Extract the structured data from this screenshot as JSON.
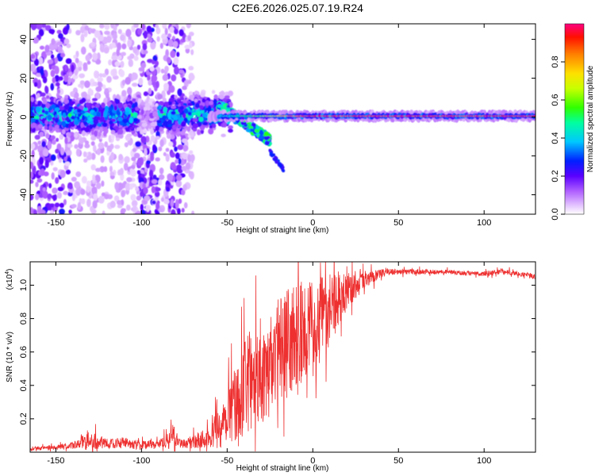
{
  "title": "C2E6.2026.025.07.19.R24",
  "chart_data": [
    {
      "type": "heatmap",
      "xlabel": "Height of straight line (km)",
      "ylabel": "Frequency (Hz)",
      "xlim": [
        -165,
        130
      ],
      "ylim": [
        -50,
        48
      ],
      "xticks": [
        -150,
        -100,
        -50,
        0,
        50,
        100
      ],
      "yticks": [
        -40,
        -20,
        0,
        20,
        40
      ],
      "colorbar": {
        "label": "Normalized spectral amplitude",
        "range": [
          0,
          1
        ],
        "ticks": [
          "0.0",
          "0.2",
          "0.4",
          "0.6",
          "0.8"
        ],
        "tick_values": [
          0.0,
          0.2,
          0.4,
          0.6,
          0.8
        ]
      },
      "features": {
        "carrier_frequency_hz": 0.5,
        "carrier_start_km": -50,
        "diverging_branch": {
          "from_km": -55,
          "to_km": -25,
          "freq_from_hz": 6,
          "freq_to_hz": -12
        },
        "tail_branch": {
          "from_km": -25,
          "to_km": -17,
          "freq_from_hz": -18,
          "freq_to_hz": -27
        },
        "noise_bands_km": [
          [
            -165,
            -140
          ],
          [
            -102,
            -90
          ],
          [
            -85,
            -75
          ]
        ]
      }
    },
    {
      "type": "line",
      "xlabel": "Height of straight line (km)",
      "ylabel": "SNR (10 * v/v)",
      "yscale_label": "(x10",
      "yscale_exp": "4",
      "yscale_close": ")",
      "xlim": [
        -165,
        130
      ],
      "ylim": [
        0,
        1.14
      ],
      "xticks": [
        -150,
        -100,
        -50,
        0,
        50,
        100
      ],
      "yticks": [
        0.2,
        0.4,
        0.6,
        0.8,
        1.0
      ],
      "ytick_labels": [
        "0.2",
        "0.4",
        "0.6",
        "0.8",
        "1.0"
      ],
      "series": [
        {
          "name": "SNR",
          "color": "#ee3030",
          "x": [
            -165,
            -150,
            -140,
            -130,
            -120,
            -110,
            -100,
            -90,
            -85,
            -82,
            -80,
            -75,
            -70,
            -60,
            -55,
            -50,
            -45,
            -40,
            -35,
            -30,
            -25,
            -20,
            -15,
            -10,
            -5,
            0,
            5,
            10,
            15,
            20,
            25,
            30,
            35,
            40,
            45,
            50,
            60,
            70,
            80,
            90,
            100,
            110,
            120,
            125,
            130
          ],
          "y": [
            0.02,
            0.03,
            0.04,
            0.07,
            0.05,
            0.06,
            0.04,
            0.05,
            0.07,
            0.12,
            0.08,
            0.05,
            0.06,
            0.1,
            0.14,
            0.22,
            0.3,
            0.38,
            0.45,
            0.5,
            0.55,
            0.6,
            0.65,
            0.7,
            0.73,
            0.76,
            0.8,
            0.86,
            0.92,
            0.96,
            1.0,
            1.03,
            1.05,
            1.07,
            1.08,
            1.08,
            1.08,
            1.08,
            1.08,
            1.07,
            1.07,
            1.08,
            1.07,
            1.06,
            1.05
          ],
          "jitter_env": {
            "x": [
              -165,
              -140,
              -130,
              -120,
              -100,
              -90,
              -82,
              -78,
              -70,
              -60,
              -50,
              -40,
              -30,
              -20,
              -10,
              0,
              10,
              20,
              30,
              40,
              50,
              130
            ],
            "amp": [
              0.01,
              0.02,
              0.06,
              0.03,
              0.03,
              0.02,
              0.06,
              0.03,
              0.04,
              0.07,
              0.18,
              0.28,
              0.35,
              0.35,
              0.32,
              0.28,
              0.22,
              0.12,
              0.05,
              0.025,
              0.015,
              0.015
            ]
          }
        }
      ]
    }
  ]
}
